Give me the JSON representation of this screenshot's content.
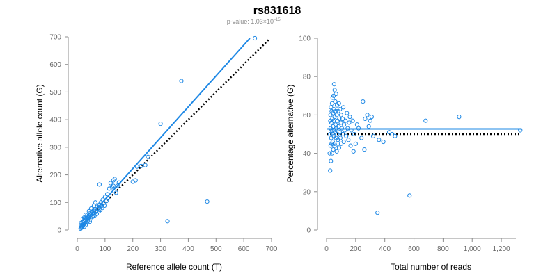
{
  "figure": {
    "title": "rs831618",
    "subtitle_prefix": "p-value: 1.03×10",
    "subtitle_exponent": "-15"
  },
  "colors": {
    "points": "#1e88e5",
    "fit_line": "#1e88e5",
    "reference_line": "#000000",
    "axis": "#8c8c8c",
    "tick_text": "#666666",
    "subtitle": "#8c8c8c"
  },
  "chart_data": [
    {
      "type": "scatter",
      "xlabel": "Reference allele count (T)",
      "ylabel": "Alternative allele count (G)",
      "xlim": [
        0,
        700
      ],
      "ylim": [
        0,
        700
      ],
      "xticks": [
        0,
        100,
        200,
        300,
        400,
        500,
        600,
        700
      ],
      "yticks": [
        0,
        100,
        200,
        300,
        400,
        500,
        600,
        700
      ],
      "xtick_labels": [
        "0",
        "100",
        "200",
        "300",
        "400",
        "500",
        "600",
        "700"
      ],
      "ytick_labels": [
        "0",
        "100",
        "200",
        "300",
        "400",
        "500",
        "600",
        "700"
      ],
      "grid": false,
      "fit_line": {
        "x": [
          10,
          622
        ],
        "y": [
          10,
          695
        ],
        "style": "solid"
      },
      "reference_line": {
        "x": [
          10,
          690
        ],
        "y": [
          10,
          690
        ],
        "style": "dotted"
      },
      "points": [
        [
          12,
          5
        ],
        [
          14,
          8
        ],
        [
          15,
          12
        ],
        [
          16,
          18
        ],
        [
          18,
          10
        ],
        [
          18,
          22
        ],
        [
          20,
          15
        ],
        [
          20,
          28
        ],
        [
          22,
          20
        ],
        [
          24,
          32
        ],
        [
          25,
          12
        ],
        [
          26,
          38
        ],
        [
          28,
          25
        ],
        [
          30,
          35
        ],
        [
          30,
          18
        ],
        [
          32,
          42
        ],
        [
          33,
          28
        ],
        [
          35,
          38
        ],
        [
          36,
          48
        ],
        [
          38,
          32
        ],
        [
          40,
          45
        ],
        [
          42,
          52
        ],
        [
          44,
          36
        ],
        [
          45,
          60
        ],
        [
          48,
          55
        ],
        [
          50,
          42
        ],
        [
          52,
          65
        ],
        [
          55,
          58
        ],
        [
          55,
          48
        ],
        [
          58,
          70
        ],
        [
          60,
          62
        ],
        [
          62,
          52
        ],
        [
          65,
          75
        ],
        [
          68,
          66
        ],
        [
          70,
          58
        ],
        [
          72,
          85
        ],
        [
          75,
          78
        ],
        [
          78,
          68
        ],
        [
          80,
          92
        ],
        [
          82,
          72
        ],
        [
          85,
          100
        ],
        [
          88,
          88
        ],
        [
          90,
          80
        ],
        [
          92,
          110
        ],
        [
          95,
          98
        ],
        [
          98,
          88
        ],
        [
          100,
          120
        ],
        [
          105,
          105
        ],
        [
          108,
          130
        ],
        [
          110,
          115
        ],
        [
          115,
          150
        ],
        [
          120,
          170
        ],
        [
          125,
          155
        ],
        [
          130,
          180
        ],
        [
          130,
          160
        ],
        [
          135,
          185
        ],
        [
          140,
          135
        ],
        [
          145,
          160
        ],
        [
          150,
          172
        ],
        [
          80,
          165
        ],
        [
          200,
          175
        ],
        [
          210,
          180
        ],
        [
          215,
          230
        ],
        [
          230,
          232
        ],
        [
          245,
          235
        ],
        [
          255,
          265
        ],
        [
          300,
          385
        ],
        [
          375,
          540
        ],
        [
          640,
          695
        ],
        [
          325,
          32
        ],
        [
          468,
          103
        ],
        [
          28,
          38
        ],
        [
          36,
          55
        ],
        [
          42,
          68
        ],
        [
          50,
          78
        ],
        [
          60,
          88
        ],
        [
          25,
          45
        ],
        [
          65,
          100
        ],
        [
          45,
          30
        ],
        [
          14,
          26
        ],
        [
          20,
          40
        ],
        [
          30,
          55
        ]
      ]
    },
    {
      "type": "scatter",
      "xlabel": "Total number of reads",
      "ylabel": "Percentage alternative (G)",
      "xlim": [
        0,
        1300
      ],
      "ylim": [
        0,
        100
      ],
      "xticks": [
        0,
        200,
        400,
        600,
        800,
        1000,
        1200
      ],
      "yticks": [
        0,
        20,
        40,
        60,
        80,
        100
      ],
      "xtick_labels": [
        "0",
        "200",
        "400",
        "600",
        "800",
        "1,000",
        "1,200"
      ],
      "ytick_labels": [
        "0",
        "20",
        "40",
        "60",
        "80",
        "100"
      ],
      "grid": false,
      "fit_line": {
        "x": [
          0,
          1340
        ],
        "y": [
          52.7,
          52.7
        ],
        "style": "solid"
      },
      "reference_line": {
        "x": [
          0,
          1320
        ],
        "y": [
          50,
          50
        ],
        "style": "dotted"
      },
      "points": [
        [
          22,
          40
        ],
        [
          25,
          31
        ],
        [
          25,
          50
        ],
        [
          26,
          57
        ],
        [
          27,
          60
        ],
        [
          28,
          44
        ],
        [
          28,
          53
        ],
        [
          30,
          64
        ],
        [
          30,
          36
        ],
        [
          32,
          48
        ],
        [
          33,
          56
        ],
        [
          35,
          62
        ],
        [
          35,
          45
        ],
        [
          36,
          52
        ],
        [
          38,
          66
        ],
        [
          38,
          40
        ],
        [
          40,
          58
        ],
        [
          40,
          50
        ],
        [
          42,
          69
        ],
        [
          42,
          46
        ],
        [
          45,
          54
        ],
        [
          45,
          61
        ],
        [
          46,
          42
        ],
        [
          48,
          70
        ],
        [
          48,
          57
        ],
        [
          50,
          49
        ],
        [
          50,
          63
        ],
        [
          52,
          76
        ],
        [
          52,
          52
        ],
        [
          55,
          45
        ],
        [
          55,
          59
        ],
        [
          56,
          73
        ],
        [
          58,
          51
        ],
        [
          60,
          67
        ],
        [
          60,
          44
        ],
        [
          62,
          55
        ],
        [
          63,
          62
        ],
        [
          65,
          48
        ],
        [
          65,
          71
        ],
        [
          68,
          53
        ],
        [
          70,
          60
        ],
        [
          70,
          41
        ],
        [
          72,
          65
        ],
        [
          74,
          50
        ],
        [
          75,
          57
        ],
        [
          78,
          47
        ],
        [
          80,
          62
        ],
        [
          82,
          54
        ],
        [
          85,
          66
        ],
        [
          86,
          43
        ],
        [
          88,
          58
        ],
        [
          90,
          51
        ],
        [
          92,
          63
        ],
        [
          95,
          48
        ],
        [
          98,
          56
        ],
        [
          100,
          60
        ],
        [
          100,
          45
        ],
        [
          105,
          53
        ],
        [
          110,
          58
        ],
        [
          112,
          50
        ],
        [
          115,
          64
        ],
        [
          118,
          46
        ],
        [
          120,
          55
        ],
        [
          125,
          52
        ],
        [
          130,
          57
        ],
        [
          135,
          49
        ],
        [
          140,
          61
        ],
        [
          145,
          53
        ],
        [
          150,
          47
        ],
        [
          155,
          56
        ],
        [
          160,
          59
        ],
        [
          165,
          44
        ],
        [
          170,
          52
        ],
        [
          180,
          57
        ],
        [
          185,
          41
        ],
        [
          190,
          50
        ],
        [
          200,
          45
        ],
        [
          210,
          55
        ],
        [
          220,
          53
        ],
        [
          240,
          48
        ],
        [
          250,
          67
        ],
        [
          260,
          42
        ],
        [
          265,
          58
        ],
        [
          280,
          60
        ],
        [
          290,
          54
        ],
        [
          300,
          57
        ],
        [
          310,
          59
        ],
        [
          320,
          49
        ],
        [
          360,
          47
        ],
        [
          390,
          46
        ],
        [
          430,
          51
        ],
        [
          450,
          50
        ],
        [
          470,
          49
        ],
        [
          350,
          9
        ],
        [
          570,
          18
        ],
        [
          680,
          57
        ],
        [
          910,
          59
        ],
        [
          1330,
          52
        ]
      ]
    }
  ]
}
